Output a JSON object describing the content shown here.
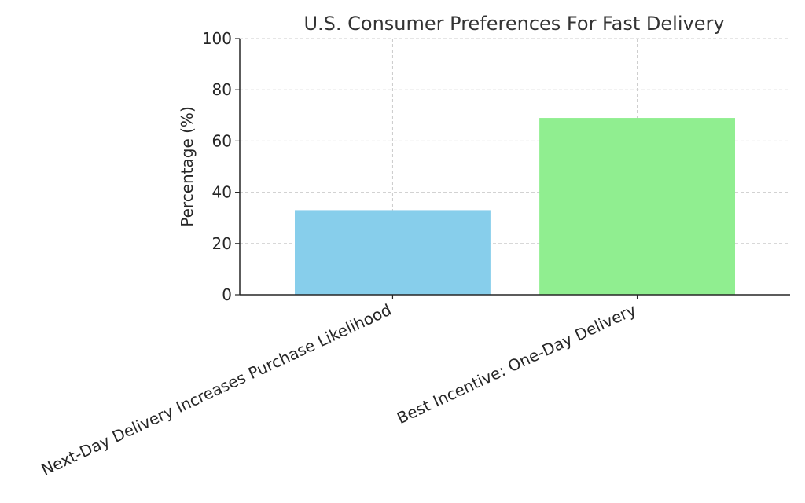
{
  "chart_data": {
    "type": "bar",
    "title": "U.S. Consumer Preferences For Fast Delivery",
    "xlabel": "",
    "ylabel": "Percentage (%)",
    "categories": [
      "Next-Day Delivery Increases Purchase Likelihood",
      "Best Incentive: One-Day Delivery"
    ],
    "values": [
      33,
      69
    ],
    "colors": [
      "#87ceeb",
      "#90ee90"
    ],
    "ylim": [
      0,
      100
    ],
    "yticks": [
      "0",
      "20",
      "40",
      "60",
      "80",
      "100"
    ],
    "grid": true,
    "legend": "none"
  }
}
